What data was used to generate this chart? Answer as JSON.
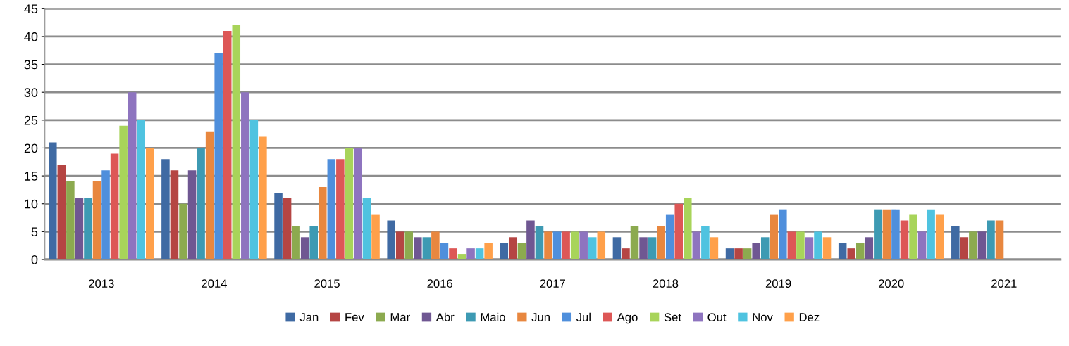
{
  "chart_data": {
    "type": "bar",
    "categories": [
      "2013",
      "2014",
      "2015",
      "2016",
      "2017",
      "2018",
      "2019",
      "2020",
      "2021"
    ],
    "series": [
      {
        "name": "Jan",
        "color": "#3f6aa3",
        "values": [
          21,
          18,
          12,
          7,
          3,
          4,
          2,
          3,
          6
        ]
      },
      {
        "name": "Fev",
        "color": "#b54543",
        "values": [
          17,
          16,
          11,
          5,
          4,
          2,
          2,
          2,
          4
        ]
      },
      {
        "name": "Mar",
        "color": "#8caa4f",
        "values": [
          14,
          10,
          6,
          5,
          3,
          6,
          2,
          3,
          5
        ]
      },
      {
        "name": "Abr",
        "color": "#6f5792",
        "values": [
          11,
          16,
          4,
          4,
          7,
          4,
          3,
          4,
          5
        ]
      },
      {
        "name": "Maio",
        "color": "#3d9ab3",
        "values": [
          11,
          20,
          6,
          4,
          6,
          4,
          4,
          9,
          7
        ]
      },
      {
        "name": "Jun",
        "color": "#e8873f",
        "values": [
          14,
          23,
          13,
          5,
          5,
          6,
          8,
          9,
          7
        ]
      },
      {
        "name": "Jul",
        "color": "#4f8fdc",
        "values": [
          16,
          37,
          18,
          3,
          5,
          8,
          9,
          9,
          null
        ]
      },
      {
        "name": "Ago",
        "color": "#dd5756",
        "values": [
          19,
          41,
          18,
          2,
          5,
          10,
          5,
          7,
          null
        ]
      },
      {
        "name": "Set",
        "color": "#a8d45a",
        "values": [
          24,
          42,
          20,
          1,
          5,
          11,
          5,
          8,
          null
        ]
      },
      {
        "name": "Out",
        "color": "#8e74bf",
        "values": [
          30,
          30,
          20,
          2,
          5,
          5,
          4,
          5,
          null
        ]
      },
      {
        "name": "Nov",
        "color": "#4fc3e0",
        "values": [
          25,
          25,
          11,
          2,
          4,
          6,
          5,
          9,
          null
        ]
      },
      {
        "name": "Dez",
        "color": "#ffa04a",
        "values": [
          20,
          22,
          8,
          3,
          5,
          4,
          4,
          8,
          null
        ]
      }
    ],
    "ylim": [
      0,
      45
    ],
    "yticks": [
      0,
      5,
      10,
      15,
      20,
      25,
      30,
      35,
      40,
      45
    ],
    "grid": "y",
    "legend": "bottom"
  }
}
